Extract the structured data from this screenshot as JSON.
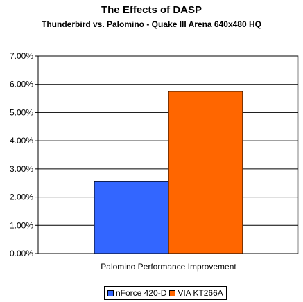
{
  "chart_data": {
    "type": "bar",
    "title": "The Effects of DASP",
    "subtitle": "Thunderbird vs. Palomino - Quake III Arena 640x480 HQ",
    "categories": [
      "Palomino Performance Improvement"
    ],
    "series": [
      {
        "name": "nForce 420-D",
        "values": [
          0.0255
        ],
        "color": "#3366ff"
      },
      {
        "name": "VIA KT266A",
        "values": [
          0.0575
        ],
        "color": "#ff6600"
      }
    ],
    "ylim": [
      0,
      0.07
    ],
    "yticks": [
      "0.00%",
      "1.00%",
      "2.00%",
      "3.00%",
      "4.00%",
      "5.00%",
      "6.00%",
      "7.00%"
    ],
    "ytick_values": [
      0,
      0.01,
      0.02,
      0.03,
      0.04,
      0.05,
      0.06,
      0.07
    ],
    "grid": true,
    "plot_background": "#ffffff",
    "legend_position": "bottom"
  }
}
